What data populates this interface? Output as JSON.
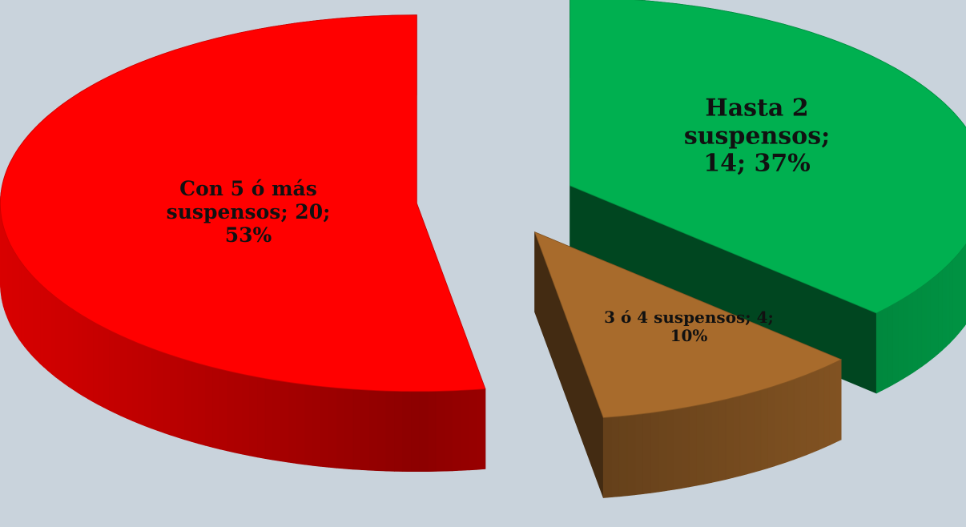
{
  "chart_data": {
    "type": "pie3d",
    "values": [
      14,
      4,
      20
    ],
    "value_labels": [
      "Hasta 2 suspensos; 14; 37%",
      "3 ó 4 suspensos; 4; 10%",
      "Con 5 ó más suspensos; 20; 53%"
    ],
    "colors": [
      "#00b050",
      "#a86b2c",
      "#ff0000"
    ]
  }
}
